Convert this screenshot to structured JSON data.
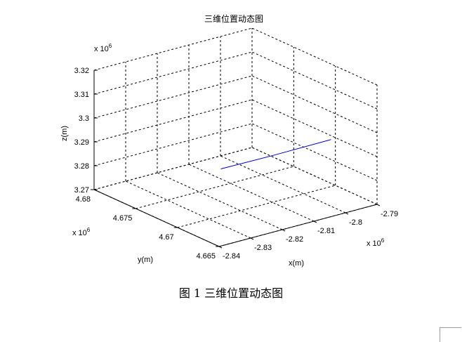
{
  "caption": "图 1  三维位置动态图",
  "chart_data": {
    "type": "line3d",
    "title": "三维位置动态图",
    "xlabel": "x(m)",
    "ylabel": "y(m)",
    "zlabel": "z(m)",
    "x_exponent": "x 10",
    "x_exponent_power": "6",
    "y_exponent": "x 10",
    "y_exponent_power": "6",
    "z_exponent": "x 10",
    "z_exponent_power": "6",
    "xlim": [
      -2.84,
      -2.79
    ],
    "ylim": [
      4.665,
      4.68
    ],
    "zlim": [
      3.27,
      3.32
    ],
    "x_ticks": [
      "-2.84",
      "-2.83",
      "-2.82",
      "-2.81",
      "-2.8",
      "-2.79"
    ],
    "y_ticks": [
      "4.665",
      "4.67",
      "4.675",
      "4.68"
    ],
    "z_ticks": [
      "3.27",
      "3.28",
      "3.29",
      "3.3",
      "3.31",
      "3.32"
    ],
    "grid": true,
    "series": [
      {
        "color": "#0000cc",
        "points": [
          {
            "x": -2.8115,
            "y": 4.6756,
            "z": 3.2756
          },
          {
            "x": -2.8075,
            "y": 4.671,
            "z": 3.287
          },
          {
            "x": -2.8022,
            "y": 4.6659,
            "z": 3.3
          }
        ]
      }
    ]
  }
}
